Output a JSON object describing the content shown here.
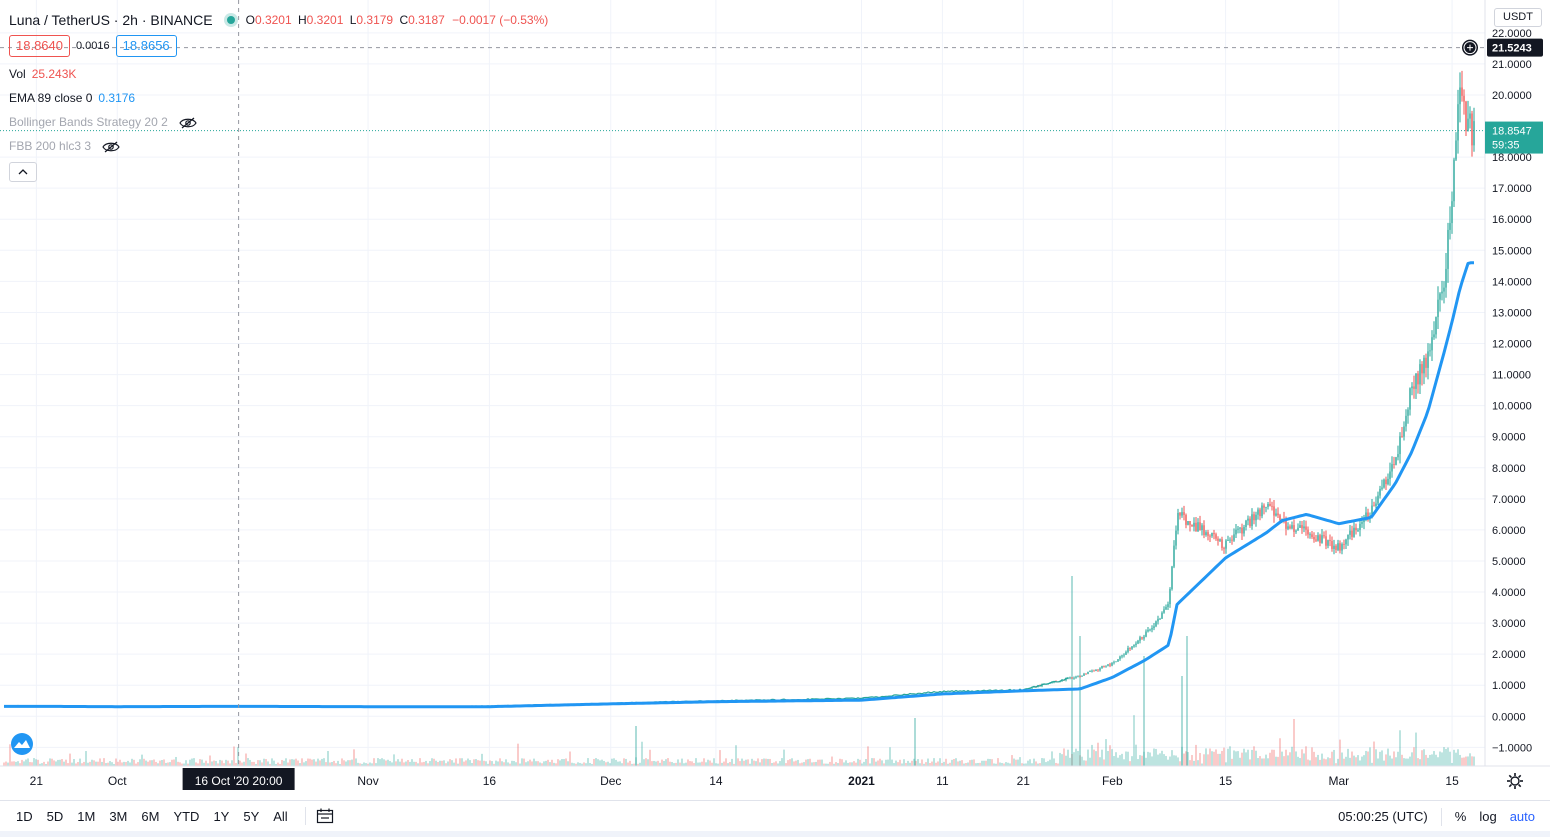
{
  "header": {
    "symbol_title": "Luna / TetherUS · 2h · BINANCE",
    "ohlc": {
      "o_label": "O",
      "o_value": "0.3201",
      "h_label": "H",
      "h_value": "0.3201",
      "l_label": "L",
      "l_value": "0.3179",
      "c_label": "C",
      "c_value": "0.3187",
      "change": "−0.0017 (−0.53%)"
    },
    "bid": "18.8640",
    "spread": "0.0016",
    "ask": "18.8656"
  },
  "indicators": {
    "vol_name": "Vol",
    "vol_value": "25.243K",
    "ema_name": "EMA 89 close 0",
    "ema_value": "0.3176",
    "bb_name": "Bollinger Bands Strategy 20 2",
    "fbb_name": "FBB 200 hlc3 3"
  },
  "price_axis": {
    "currency_tag": "USDT",
    "ticks": [
      "22.0000",
      "21.0000",
      "20.0000",
      "18.0000",
      "17.0000",
      "16.0000",
      "15.0000",
      "14.0000",
      "13.0000",
      "12.0000",
      "11.0000",
      "10.0000",
      "9.0000",
      "8.0000",
      "7.0000",
      "6.0000",
      "5.0000",
      "4.0000",
      "3.0000",
      "2.0000",
      "1.0000",
      "0.0000",
      "−1.0000"
    ],
    "crosshair_label": "21.5243",
    "last_price_label": "18.8547",
    "countdown_label": "59:35"
  },
  "time_axis": {
    "ticks": [
      "21",
      "Oct",
      "Nov",
      "16",
      "Dec",
      "14",
      "2021",
      "11",
      "21",
      "Feb",
      "15",
      "Mar",
      "15"
    ],
    "crosshair_label": "16 Oct '20   20:00"
  },
  "bottom_bar": {
    "ranges": [
      "1D",
      "5D",
      "1M",
      "3M",
      "6M",
      "YTD",
      "1Y",
      "5Y",
      "All"
    ],
    "clock": "05:00:25 (UTC)",
    "percent": "%",
    "log": "log",
    "auto": "auto"
  },
  "colors": {
    "up": "#26a69a",
    "down": "#ef5350",
    "ema": "#2196f3",
    "grid": "#f0f3fa",
    "crosshair": "#9598a1",
    "last_price_bg": "#26a69a",
    "crosshair_label_bg": "#131722"
  },
  "chart_data": {
    "type": "line",
    "title": "Luna / TetherUS · 2h · BINANCE",
    "xlabel": "",
    "ylabel": "",
    "ylim": [
      -1.6,
      22.8
    ],
    "x": [
      "2020-09-21",
      "2020-10-01",
      "2020-10-16",
      "2020-11-01",
      "2020-11-16",
      "2020-12-01",
      "2020-12-14",
      "2021-01-01",
      "2021-01-11",
      "2021-01-21",
      "2021-01-28",
      "2021-02-01",
      "2021-02-05",
      "2021-02-08",
      "2021-02-09",
      "2021-02-15",
      "2021-02-20",
      "2021-02-22",
      "2021-02-25",
      "2021-03-01",
      "2021-03-05",
      "2021-03-08",
      "2021-03-10",
      "2021-03-12",
      "2021-03-14",
      "2021-03-15",
      "2021-03-16",
      "2021-03-17"
    ],
    "series": [
      {
        "name": "Luna / TetherUS",
        "values": [
          0.34,
          0.31,
          0.32,
          0.3,
          0.33,
          0.42,
          0.5,
          0.58,
          0.8,
          0.85,
          1.3,
          1.7,
          2.6,
          3.6,
          6.5,
          5.5,
          6.8,
          6.2,
          6.0,
          5.4,
          6.6,
          8.3,
          10.5,
          11.6,
          14.0,
          16.5,
          20.5,
          18.85
        ]
      },
      {
        "name": "EMA 89 close 0",
        "values": [
          0.32,
          0.31,
          0.32,
          0.31,
          0.31,
          0.4,
          0.47,
          0.52,
          0.72,
          0.82,
          0.88,
          1.25,
          1.8,
          2.3,
          3.6,
          5.1,
          5.9,
          6.3,
          6.5,
          6.2,
          6.4,
          7.5,
          8.5,
          9.8,
          11.7,
          12.7,
          13.8,
          14.6
        ]
      }
    ],
    "volume_label": "Vol",
    "last_volume": "25.243K",
    "grid": true,
    "legend": "top-left"
  }
}
